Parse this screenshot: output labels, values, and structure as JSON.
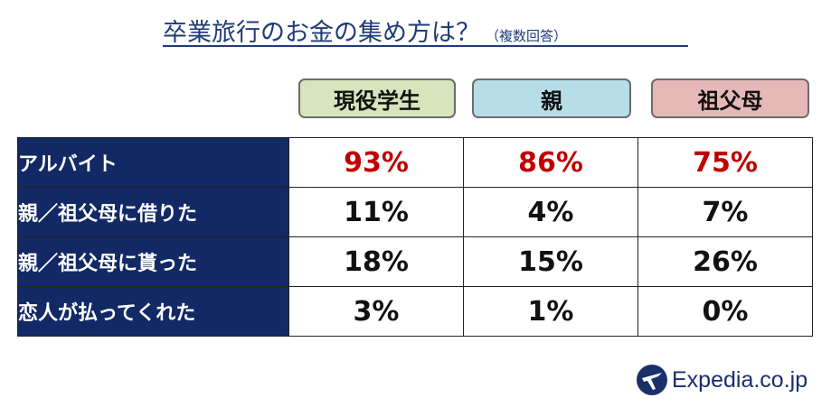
{
  "title": {
    "main": "卒業旅行のお金の集め方は？",
    "sub": "（複数回答）"
  },
  "chart_data": {
    "type": "table",
    "title": "卒業旅行のお金の集め方は？（複数回答）",
    "columns": [
      "現役学生",
      "親",
      "祖父母"
    ],
    "column_colors": [
      "#d8e4bc",
      "#b7dde8",
      "#e6b9b8"
    ],
    "rows": [
      {
        "label": "アルバイト",
        "values": [
          "93%",
          "86%",
          "75%"
        ],
        "highlight": true
      },
      {
        "label": "親／祖父母に借りた",
        "values": [
          "11%",
          "4%",
          "7%"
        ]
      },
      {
        "label": "親／祖父母に貰った",
        "values": [
          "18%",
          "15%",
          "26%"
        ]
      },
      {
        "label": "恋人が払ってくれた",
        "values": [
          "3%",
          "1%",
          "0%"
        ]
      }
    ],
    "highlight_color": "#c00000",
    "row_label_background": "#132966"
  },
  "logo": {
    "text": "Expedia.co.jp",
    "icon": "expedia-plane-icon"
  }
}
